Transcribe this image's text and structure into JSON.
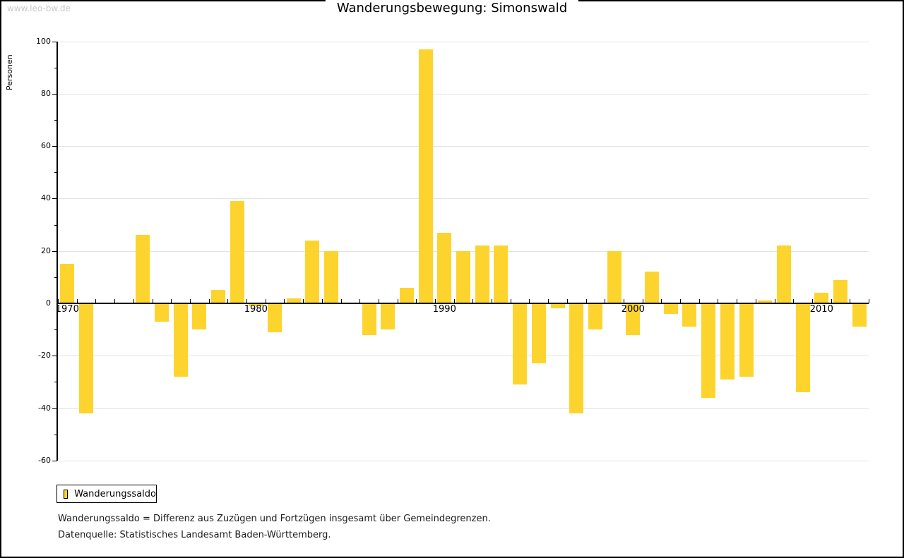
{
  "watermark": "www.leo-bw.de",
  "title": "Wanderungsbewegung: Simonswald",
  "legend": {
    "label": "Wanderungssaldo"
  },
  "footnotes": {
    "definition": "Wanderungssaldo = Differenz aus Zuzügen und Fortzügen insgesamt über Gemeindegrenzen.",
    "source": "Datenquelle: Statistisches Landesamt Baden-Württemberg."
  },
  "colors": {
    "bar": "#FDD42D",
    "grid": "#e3e3e3",
    "axis": "#000000",
    "watermark": "#c9c9c9"
  },
  "chart_data": {
    "type": "bar",
    "title": "Wanderungsbewegung: Simonswald",
    "xlabel": "",
    "ylabel": "Personen",
    "series_name": "Wanderungssaldo",
    "x": [
      1970,
      1971,
      1972,
      1973,
      1974,
      1975,
      1976,
      1977,
      1978,
      1979,
      1980,
      1981,
      1982,
      1983,
      1984,
      1985,
      1986,
      1987,
      1988,
      1989,
      1990,
      1991,
      1992,
      1993,
      1994,
      1995,
      1996,
      1997,
      1998,
      1999,
      2000,
      2001,
      2002,
      2003,
      2004,
      2005,
      2006,
      2007,
      2008,
      2009,
      2010,
      2011,
      2012
    ],
    "values": [
      15,
      -42,
      0,
      0,
      26,
      -7,
      -28,
      -10,
      5,
      39,
      -1,
      -11,
      2,
      24,
      20,
      0,
      -12,
      -10,
      6,
      97,
      27,
      20,
      22,
      22,
      -31,
      -23,
      -2,
      -42,
      -10,
      20,
      -12,
      12,
      -4,
      -9,
      -36,
      -29,
      -28,
      1,
      22,
      -34,
      4,
      9,
      -9
    ],
    "ylim": [
      -60,
      100
    ],
    "ytick_interval": 20,
    "ytick_labels": [
      "100",
      "80",
      "60",
      "40",
      "20",
      "0",
      "-20",
      "-40",
      "-60"
    ],
    "xtick_labels": [
      "1970",
      "1980",
      "1990",
      "2000",
      "2010"
    ],
    "grid": true,
    "legend_position": "bottom-left",
    "bar_color": "#FDD42D"
  }
}
